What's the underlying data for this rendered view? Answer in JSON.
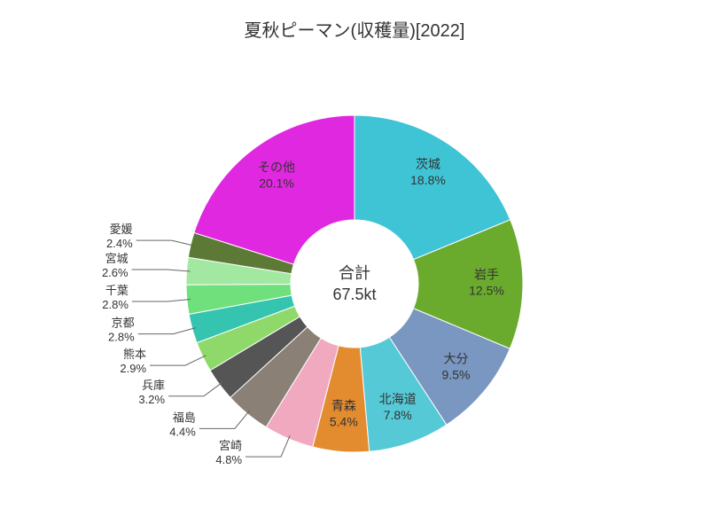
{
  "chart": {
    "type": "pie",
    "title": "夏秋ピーマン(収穫量)[2022]",
    "title_fontsize": 20,
    "center_label_top": "合計",
    "center_label_bottom": "67.5kt",
    "center_fontsize": 18,
    "background_color": "#ffffff",
    "outer_radius": 190,
    "inner_radius": 72,
    "start_angle_deg": -90,
    "label_fontsize": 14,
    "ext_label_fontsize": 13,
    "leader_color": "#666666",
    "slices": [
      {
        "name": "茨城",
        "percent": 18.8,
        "color": "#3fc4d6",
        "label_inside": true
      },
      {
        "name": "岩手",
        "percent": 12.5,
        "color": "#6aab2e",
        "label_inside": true
      },
      {
        "name": "大分",
        "percent": 9.5,
        "color": "#7a97c1",
        "label_inside": true
      },
      {
        "name": "北海道",
        "percent": 7.8,
        "color": "#55c9d6",
        "label_inside": true
      },
      {
        "name": "青森",
        "percent": 5.4,
        "color": "#e38b2f",
        "label_inside": true
      },
      {
        "name": "宮崎",
        "percent": 4.8,
        "color": "#f1a9c0",
        "label_inside": false
      },
      {
        "name": "福島",
        "percent": 4.4,
        "color": "#8a8075",
        "label_inside": false
      },
      {
        "name": "兵庫",
        "percent": 3.2,
        "color": "#555555",
        "label_inside": false
      },
      {
        "name": "熊本",
        "percent": 2.9,
        "color": "#8fd96a",
        "label_inside": false
      },
      {
        "name": "京都",
        "percent": 2.8,
        "color": "#35c4b0",
        "label_inside": false
      },
      {
        "name": "千葉",
        "percent": 2.8,
        "color": "#6fe07b",
        "label_inside": false
      },
      {
        "name": "宮城",
        "percent": 2.6,
        "color": "#a2e8a0",
        "label_inside": false
      },
      {
        "name": "愛媛",
        "percent": 2.4,
        "color": "#5c7a36",
        "label_inside": false
      },
      {
        "name": "その他",
        "percent": 20.1,
        "color": "#e028e0",
        "label_inside": true
      }
    ]
  }
}
